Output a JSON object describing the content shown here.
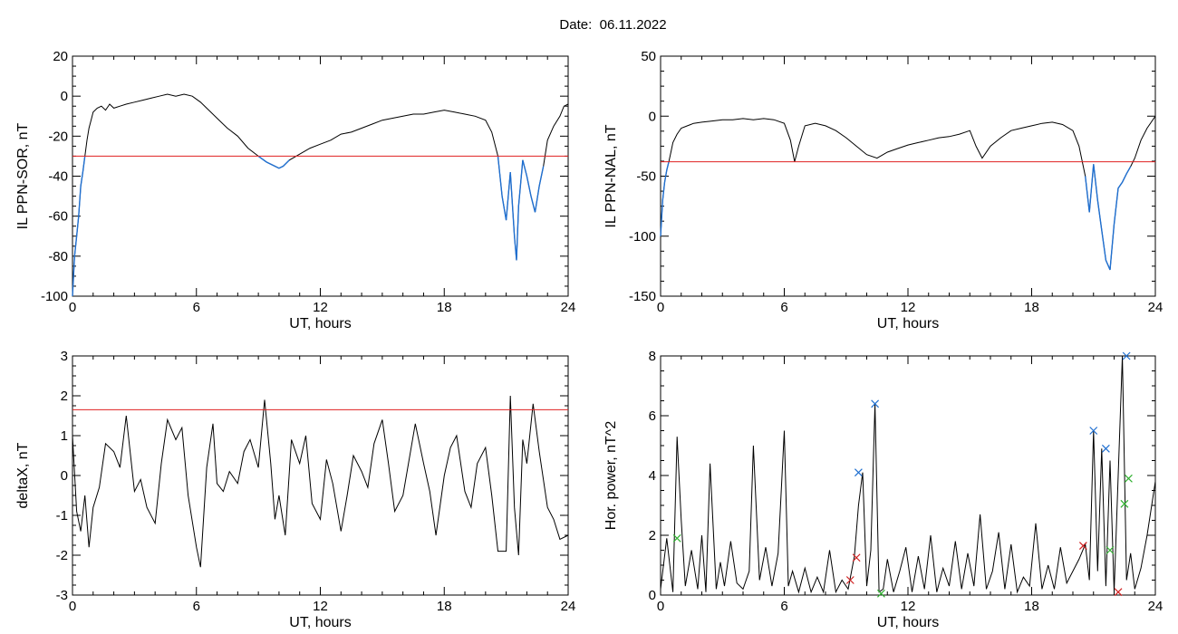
{
  "header": {
    "date_label": "Date:",
    "date_value": "06.11.2022"
  },
  "colors": {
    "trace": "#000000",
    "threshold": "#e02020",
    "highlight": "#1f6fd0",
    "marker_blue": "#1f6fd0",
    "marker_red": "#d02020",
    "marker_green": "#30b030"
  },
  "chart_data": [
    {
      "id": "sor",
      "type": "line",
      "xlabel": "UT, hours",
      "ylabel": "IL PPN-SOR, nT",
      "xlim": [
        0,
        24
      ],
      "ylim": [
        -100,
        20
      ],
      "xticks": [
        0,
        6,
        12,
        18,
        24
      ],
      "yticks": [
        -100,
        -80,
        -60,
        -40,
        -20,
        0,
        20
      ],
      "threshold": -30,
      "series": [
        {
          "values_note": "",
          "x": [
            0,
            0.1,
            0.2,
            0.3,
            0.4,
            0.5,
            0.6,
            0.7,
            0.8,
            0.9,
            1.0,
            1.2,
            1.4,
            1.6,
            1.8,
            2.0,
            2.3,
            2.6,
            3.0,
            3.4,
            3.8,
            4.2,
            4.6,
            5.0,
            5.4,
            5.8,
            6.2,
            6.6,
            7.0,
            7.5,
            8.0,
            8.5,
            9.0,
            9.4,
            9.8,
            10.0,
            10.2,
            10.5,
            11.0,
            11.5,
            12.0,
            12.5,
            13.0,
            13.5,
            14.0,
            14.5,
            15.0,
            15.5,
            16.0,
            16.5,
            17.0,
            17.5,
            18.0,
            18.5,
            19.0,
            19.5,
            20.0,
            20.3,
            20.6,
            20.8,
            21.0,
            21.2,
            21.4,
            21.5,
            21.6,
            21.8,
            22.0,
            22.2,
            22.4,
            22.6,
            22.8,
            23.0,
            23.3,
            23.6,
            23.8,
            24.0
          ],
          "y": [
            -100,
            -80,
            -70,
            -60,
            -45,
            -38,
            -30,
            -22,
            -16,
            -12,
            -8,
            -6,
            -5,
            -7,
            -4,
            -6,
            -5,
            -4,
            -3,
            -2,
            -1,
            0,
            1,
            0,
            1,
            0,
            -3,
            -7,
            -11,
            -16,
            -20,
            -26,
            -30,
            -33,
            -35,
            -36,
            -35,
            -32,
            -29,
            -26,
            -24,
            -22,
            -19,
            -18,
            -16,
            -14,
            -12,
            -11,
            -10,
            -9,
            -9,
            -8,
            -7,
            -8,
            -9,
            -10,
            -12,
            -18,
            -30,
            -50,
            -62,
            -38,
            -70,
            -82,
            -55,
            -32,
            -40,
            -50,
            -58,
            -45,
            -35,
            -22,
            -15,
            -10,
            -5,
            -4
          ]
        }
      ]
    },
    {
      "id": "nal",
      "type": "line",
      "xlabel": "UT, hours",
      "ylabel": "IL PPN-NAL, nT",
      "xlim": [
        0,
        24
      ],
      "ylim": [
        -150,
        50
      ],
      "xticks": [
        0,
        6,
        12,
        18,
        24
      ],
      "yticks": [
        -150,
        -100,
        -50,
        0,
        50
      ],
      "threshold": -38,
      "series": [
        {
          "values_note": "",
          "x": [
            0,
            0.1,
            0.2,
            0.3,
            0.4,
            0.5,
            0.6,
            0.8,
            1.0,
            1.3,
            1.6,
            2.0,
            2.5,
            3.0,
            3.5,
            4.0,
            4.5,
            5.0,
            5.5,
            6.0,
            6.3,
            6.5,
            6.7,
            7.0,
            7.5,
            8.0,
            8.5,
            9.0,
            9.5,
            10.0,
            10.5,
            11.0,
            11.5,
            12.0,
            12.5,
            13.0,
            13.5,
            14.0,
            14.5,
            15.0,
            15.3,
            15.6,
            16.0,
            16.5,
            17.0,
            17.5,
            18.0,
            18.5,
            19.0,
            19.5,
            20.0,
            20.3,
            20.6,
            20.8,
            21.0,
            21.2,
            21.4,
            21.6,
            21.8,
            22.0,
            22.2,
            22.4,
            22.6,
            22.8,
            23.0,
            23.3,
            23.6,
            24.0
          ],
          "y": [
            -100,
            -70,
            -55,
            -45,
            -38,
            -30,
            -22,
            -15,
            -10,
            -8,
            -6,
            -5,
            -4,
            -3,
            -3,
            -2,
            -3,
            -2,
            -3,
            -6,
            -20,
            -38,
            -25,
            -8,
            -6,
            -8,
            -12,
            -18,
            -25,
            -32,
            -35,
            -30,
            -27,
            -24,
            -22,
            -20,
            -18,
            -17,
            -15,
            -12,
            -25,
            -35,
            -25,
            -18,
            -12,
            -10,
            -8,
            -6,
            -5,
            -7,
            -12,
            -25,
            -50,
            -80,
            -40,
            -70,
            -95,
            -120,
            -128,
            -90,
            -60,
            -55,
            -48,
            -42,
            -35,
            -20,
            -10,
            0
          ]
        }
      ]
    },
    {
      "id": "deltax",
      "type": "line",
      "xlabel": "UT, hours",
      "ylabel": "deltaX, nT",
      "xlim": [
        0,
        24
      ],
      "ylim": [
        -3,
        3
      ],
      "xticks": [
        0,
        6,
        12,
        18,
        24
      ],
      "yticks": [
        -3,
        -2,
        -1,
        0,
        1,
        2,
        3
      ],
      "threshold": 1.65,
      "series": [
        {
          "values_note": "",
          "x": [
            0,
            0.2,
            0.4,
            0.6,
            0.8,
            1.0,
            1.3,
            1.6,
            2.0,
            2.3,
            2.6,
            3.0,
            3.3,
            3.6,
            4.0,
            4.3,
            4.6,
            5.0,
            5.3,
            5.6,
            6.0,
            6.2,
            6.5,
            6.8,
            7.0,
            7.3,
            7.6,
            8.0,
            8.3,
            8.6,
            9.0,
            9.3,
            9.6,
            9.8,
            10.0,
            10.3,
            10.6,
            11.0,
            11.3,
            11.6,
            12.0,
            12.3,
            12.6,
            13.0,
            13.3,
            13.6,
            14.0,
            14.3,
            14.6,
            15.0,
            15.3,
            15.6,
            16.0,
            16.3,
            16.6,
            17.0,
            17.3,
            17.6,
            18.0,
            18.3,
            18.6,
            19.0,
            19.3,
            19.6,
            20.0,
            20.3,
            20.6,
            21.0,
            21.2,
            21.4,
            21.6,
            21.8,
            22.0,
            22.3,
            22.6,
            23.0,
            23.3,
            23.6,
            24.0
          ],
          "y": [
            1.0,
            -0.9,
            -1.4,
            -0.5,
            -1.8,
            -0.8,
            -0.3,
            0.8,
            0.6,
            0.2,
            1.5,
            -0.4,
            -0.1,
            -0.8,
            -1.2,
            0.3,
            1.4,
            0.9,
            1.2,
            -0.5,
            -1.8,
            -2.3,
            0.2,
            1.3,
            -0.2,
            -0.4,
            0.1,
            -0.2,
            0.6,
            0.9,
            0.2,
            1.9,
            0.3,
            -1.1,
            -0.5,
            -1.5,
            0.9,
            0.3,
            1.0,
            -0.7,
            -1.1,
            0.4,
            -0.2,
            -1.4,
            -0.5,
            0.5,
            0.1,
            -0.3,
            0.8,
            1.4,
            0.3,
            -0.9,
            -0.5,
            0.4,
            1.3,
            0.3,
            -0.4,
            -1.5,
            0.0,
            0.7,
            1.0,
            -0.4,
            -0.8,
            0.3,
            0.7,
            -0.5,
            -1.9,
            -1.9,
            2.0,
            -0.8,
            -2.0,
            0.9,
            0.3,
            1.8,
            0.6,
            -0.8,
            -1.1,
            -1.6,
            -1.5
          ]
        }
      ]
    },
    {
      "id": "hpower",
      "type": "line",
      "xlabel": "UT, hours",
      "ylabel": "Hor. power, nT^2",
      "xlim": [
        0,
        24
      ],
      "ylim": [
        0,
        8
      ],
      "xticks": [
        0,
        6,
        12,
        18,
        24
      ],
      "yticks": [
        0,
        2,
        4,
        6,
        8
      ],
      "series": [
        {
          "values_note": "",
          "x": [
            0,
            0.3,
            0.6,
            0.8,
            1.0,
            1.2,
            1.5,
            1.8,
            2.0,
            2.2,
            2.4,
            2.7,
            2.9,
            3.1,
            3.4,
            3.7,
            4.0,
            4.3,
            4.5,
            4.8,
            5.1,
            5.4,
            5.7,
            6.0,
            6.2,
            6.4,
            6.7,
            7.0,
            7.3,
            7.6,
            7.9,
            8.2,
            8.5,
            8.8,
            9.1,
            9.4,
            9.6,
            9.8,
            10.0,
            10.2,
            10.4,
            10.6,
            10.8,
            11.0,
            11.3,
            11.6,
            11.9,
            12.2,
            12.5,
            12.8,
            13.1,
            13.4,
            13.7,
            14.0,
            14.3,
            14.6,
            14.9,
            15.2,
            15.5,
            15.8,
            16.1,
            16.4,
            16.7,
            17.0,
            17.3,
            17.6,
            17.9,
            18.2,
            18.5,
            18.8,
            19.1,
            19.4,
            19.7,
            20.0,
            20.3,
            20.6,
            20.8,
            21.0,
            21.2,
            21.4,
            21.6,
            21.8,
            22.0,
            22.2,
            22.4,
            22.6,
            22.8,
            23.0,
            23.3,
            23.6,
            24.0
          ],
          "y": [
            0.2,
            1.9,
            0.1,
            5.3,
            2.5,
            0.3,
            1.5,
            0.2,
            2.0,
            0.1,
            4.4,
            0.2,
            1.1,
            0.3,
            1.8,
            0.4,
            0.2,
            0.8,
            5.0,
            0.5,
            1.6,
            0.3,
            1.4,
            5.5,
            0.3,
            0.8,
            0.1,
            0.9,
            0.1,
            0.6,
            0.1,
            1.5,
            0.1,
            0.5,
            0.2,
            1.3,
            3.0,
            4.1,
            0.3,
            1.5,
            6.4,
            0.1,
            0.2,
            1.2,
            0.1,
            0.8,
            1.6,
            0.1,
            1.3,
            0.2,
            2.0,
            0.1,
            0.9,
            0.3,
            1.8,
            0.2,
            1.4,
            0.3,
            2.7,
            0.2,
            0.8,
            2.1,
            0.2,
            1.7,
            0.1,
            0.6,
            0.3,
            2.4,
            0.2,
            1.0,
            0.2,
            1.6,
            0.4,
            0.8,
            1.2,
            1.7,
            0.5,
            5.5,
            0.8,
            4.9,
            0.3,
            4.5,
            0.1,
            4.0,
            8.0,
            0.5,
            1.4,
            0.2,
            0.9,
            2.0,
            3.8
          ]
        }
      ],
      "markers": [
        {
          "color": "blue",
          "x": 9.6,
          "y": 4.1
        },
        {
          "color": "blue",
          "x": 10.4,
          "y": 6.4
        },
        {
          "color": "blue",
          "x": 21.0,
          "y": 5.5
        },
        {
          "color": "blue",
          "x": 21.6,
          "y": 4.9
        },
        {
          "color": "blue",
          "x": 22.6,
          "y": 8.0
        },
        {
          "color": "green",
          "x": 0.8,
          "y": 1.9
        },
        {
          "color": "green",
          "x": 10.7,
          "y": 0.05
        },
        {
          "color": "green",
          "x": 21.8,
          "y": 1.5
        },
        {
          "color": "green",
          "x": 22.5,
          "y": 3.05
        },
        {
          "color": "green",
          "x": 22.7,
          "y": 3.9
        },
        {
          "color": "red",
          "x": 9.2,
          "y": 0.5
        },
        {
          "color": "red",
          "x": 9.5,
          "y": 1.25
        },
        {
          "color": "red",
          "x": 20.5,
          "y": 1.65
        },
        {
          "color": "red",
          "x": 22.2,
          "y": 0.1
        }
      ]
    }
  ]
}
